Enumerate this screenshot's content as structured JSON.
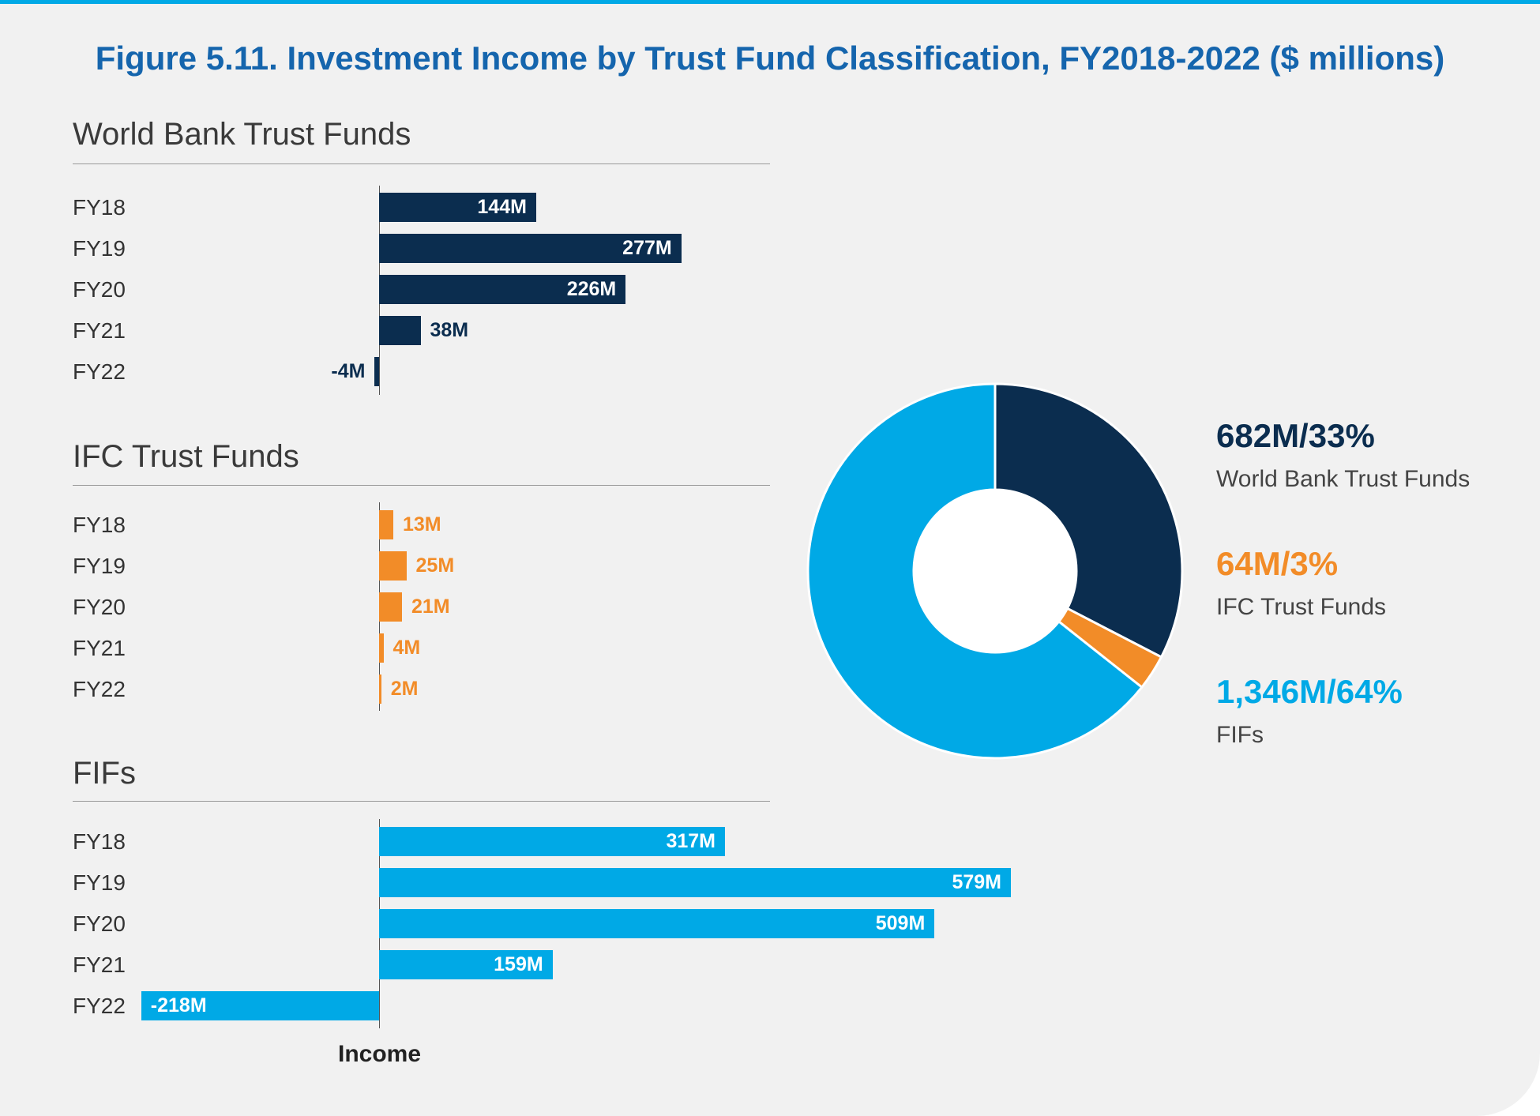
{
  "title": "Figure 5.11. Investment Income by Trust Fund Classification, FY2018-2022 ($ millions)",
  "chart_data": [
    {
      "type": "bar",
      "orientation": "horizontal",
      "title": "World Bank Trust Funds",
      "categories": [
        "FY18",
        "FY19",
        "FY20",
        "FY21",
        "FY22"
      ],
      "values": [
        144,
        277,
        226,
        38,
        -4
      ],
      "data_labels": [
        "144M",
        "277M",
        "226M",
        "38M",
        "-4M"
      ],
      "color": "#0b2d4f"
    },
    {
      "type": "bar",
      "orientation": "horizontal",
      "title": "IFC Trust Funds",
      "categories": [
        "FY18",
        "FY19",
        "FY20",
        "FY21",
        "FY22"
      ],
      "values": [
        13,
        25,
        21,
        4,
        2
      ],
      "data_labels": [
        "13M",
        "25M",
        "21M",
        "4M",
        "2M"
      ],
      "color": "#f28c28"
    },
    {
      "type": "bar",
      "orientation": "horizontal",
      "title": "FIFs",
      "categories": [
        "FY18",
        "FY19",
        "FY20",
        "FY21",
        "FY22"
      ],
      "values": [
        317,
        579,
        509,
        159,
        -218
      ],
      "data_labels": [
        "317M",
        "579M",
        "509M",
        "159M",
        "-218M"
      ],
      "color": "#00a9e6",
      "xlabel": "Income"
    },
    {
      "type": "pie",
      "donut": true,
      "slices": [
        {
          "label": "World Bank Trust Funds",
          "value": 682,
          "percent": 33,
          "value_label": "682M/33%",
          "color": "#0b2d4f"
        },
        {
          "label": "IFC Trust Funds",
          "value": 64,
          "percent": 3,
          "value_label": "64M/3%",
          "color": "#f28c28"
        },
        {
          "label": "FIFs",
          "value": 1346,
          "percent": 64,
          "value_label": "1,346M/64%",
          "color": "#00a9e6"
        }
      ]
    }
  ]
}
